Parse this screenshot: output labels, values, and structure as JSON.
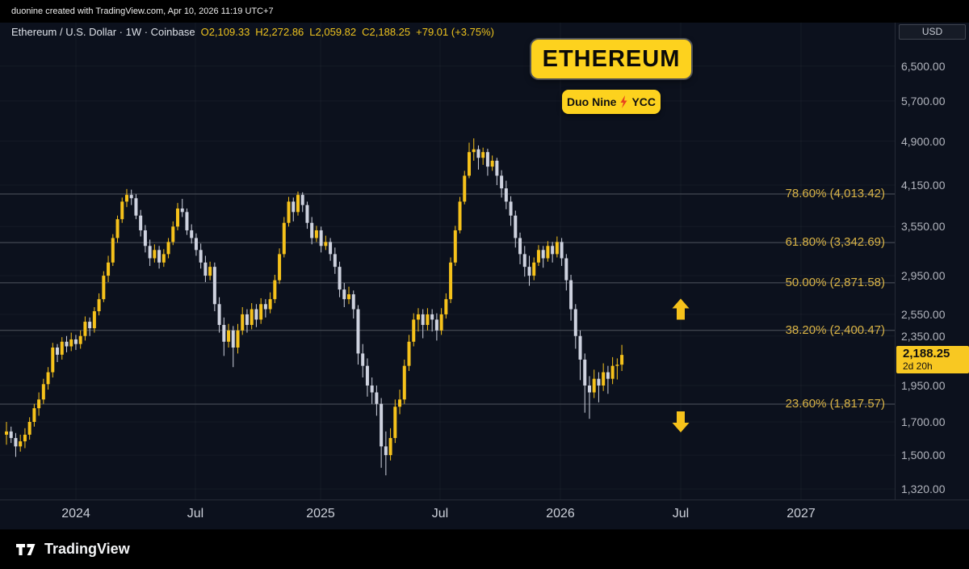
{
  "topbar": {
    "attribution": "duonine created with TradingView.com, Apr 10, 2026 11:19 UTC+7"
  },
  "legend": {
    "symbol": "Ethereum / U.S. Dollar · 1W · Coinbase",
    "ohlc": [
      "O2,109.33",
      "H2,272.86",
      "L2,059.82",
      "C2,188.25",
      "+79.01 (+3.75%)"
    ]
  },
  "badges": {
    "main": "ETHEREUM",
    "sub_left": "Duo Nine",
    "sub_right": "YCC"
  },
  "fib_levels": [
    {
      "label": "78.60% (4,013.42)",
      "value": 4013.42
    },
    {
      "label": "61.80% (3,342.69)",
      "value": 3342.69
    },
    {
      "label": "50.00% (2,871.58)",
      "value": 2871.58
    },
    {
      "label": "38.20% (2,400.47)",
      "value": 2400.47
    },
    {
      "label": "23.60% (1,817.57)",
      "value": 1817.57
    }
  ],
  "annotations": {
    "arrows": [
      {
        "dir": "up",
        "price": 2600
      },
      {
        "dir": "down",
        "price": 1700
      }
    ]
  },
  "price_axis": {
    "currency": "USD",
    "ticks": [
      {
        "label": "6,500.00",
        "value": 6500
      },
      {
        "label": "5,700.00",
        "value": 5700
      },
      {
        "label": "4,900.00",
        "value": 4900
      },
      {
        "label": "4,150.00",
        "value": 4150
      },
      {
        "label": "3,550.00",
        "value": 3550
      },
      {
        "label": "2,950.00",
        "value": 2950
      },
      {
        "label": "2,550.00",
        "value": 2550
      },
      {
        "label": "2,350.00",
        "value": 2350
      },
      {
        "label": "1,950.00",
        "value": 1950
      },
      {
        "label": "1,700.00",
        "value": 1700
      },
      {
        "label": "1,500.00",
        "value": 1500
      },
      {
        "label": "1,320.00",
        "value": 1320
      }
    ],
    "last_price": "2,188.25",
    "last_value": 2188.25,
    "countdown": "2d 20h"
  },
  "time_axis": {
    "ticks": [
      "2024",
      "Jul",
      "2025",
      "Jul",
      "2026",
      "Jul",
      "2027"
    ]
  },
  "footer": {
    "brand": "TradingView"
  },
  "colors": {
    "background": "#0c111d",
    "up": "#f6c21b",
    "down": "#ced2df",
    "accent_badge": "#fdd21e",
    "fib_text": "#d9b345",
    "fib_line": "#50555f",
    "axis_text": "#b2b5be",
    "grid": "rgba(255,255,255,0.04)"
  },
  "chart_data": {
    "type": "candlestick",
    "title": "Ethereum / U.S. Dollar",
    "timeframe": "1W",
    "exchange": "Coinbase",
    "price_scale": "logarithmic",
    "x_range": [
      "Sep 2023",
      "Apr 2026"
    ],
    "ohlc_current": {
      "open": 2109.33,
      "high": 2272.86,
      "low": 2059.82,
      "close": 2188.25,
      "change": 79.01,
      "change_pct": 3.75
    },
    "candles": [
      [
        1620,
        1700,
        1560,
        1640
      ],
      [
        1640,
        1670,
        1570,
        1600
      ],
      [
        1600,
        1630,
        1490,
        1550
      ],
      [
        1550,
        1620,
        1520,
        1580
      ],
      [
        1580,
        1660,
        1540,
        1620
      ],
      [
        1620,
        1730,
        1590,
        1700
      ],
      [
        1700,
        1820,
        1670,
        1790
      ],
      [
        1790,
        1900,
        1740,
        1850
      ],
      [
        1850,
        2000,
        1820,
        1960
      ],
      [
        1960,
        2090,
        1920,
        2050
      ],
      [
        2050,
        2290,
        2010,
        2250
      ],
      [
        2250,
        2280,
        2130,
        2190
      ],
      [
        2190,
        2340,
        2150,
        2300
      ],
      [
        2300,
        2350,
        2210,
        2260
      ],
      [
        2260,
        2380,
        2220,
        2320
      ],
      [
        2320,
        2360,
        2230,
        2280
      ],
      [
        2280,
        2400,
        2240,
        2350
      ],
      [
        2350,
        2530,
        2310,
        2480
      ],
      [
        2480,
        2520,
        2350,
        2420
      ],
      [
        2420,
        2620,
        2380,
        2580
      ],
      [
        2580,
        2760,
        2540,
        2700
      ],
      [
        2700,
        3000,
        2670,
        2950
      ],
      [
        2950,
        3180,
        2880,
        3100
      ],
      [
        3100,
        3450,
        3060,
        3400
      ],
      [
        3400,
        3700,
        3340,
        3650
      ],
      [
        3650,
        3960,
        3600,
        3900
      ],
      [
        3900,
        4090,
        3820,
        4000
      ],
      [
        4000,
        4080,
        3850,
        3950
      ],
      [
        3950,
        4010,
        3650,
        3700
      ],
      [
        3700,
        3780,
        3420,
        3500
      ],
      [
        3500,
        3570,
        3220,
        3300
      ],
      [
        3300,
        3380,
        3060,
        3150
      ],
      [
        3150,
        3320,
        3100,
        3250
      ],
      [
        3250,
        3300,
        3030,
        3100
      ],
      [
        3100,
        3260,
        3050,
        3200
      ],
      [
        3200,
        3400,
        3150,
        3350
      ],
      [
        3350,
        3620,
        3310,
        3550
      ],
      [
        3550,
        3880,
        3500,
        3800
      ],
      [
        3800,
        3940,
        3680,
        3750
      ],
      [
        3750,
        3800,
        3440,
        3500
      ],
      [
        3500,
        3580,
        3330,
        3400
      ],
      [
        3400,
        3460,
        3180,
        3250
      ],
      [
        3250,
        3330,
        3030,
        3100
      ],
      [
        3100,
        3180,
        2880,
        2950
      ],
      [
        2950,
        3110,
        2900,
        3050
      ],
      [
        3050,
        3100,
        2580,
        2650
      ],
      [
        2650,
        2720,
        2380,
        2450
      ],
      [
        2450,
        2520,
        2180,
        2300
      ],
      [
        2300,
        2460,
        2250,
        2400
      ],
      [
        2400,
        2440,
        2090,
        2250
      ],
      [
        2250,
        2460,
        2200,
        2400
      ],
      [
        2400,
        2620,
        2360,
        2550
      ],
      [
        2550,
        2600,
        2380,
        2450
      ],
      [
        2450,
        2660,
        2410,
        2600
      ],
      [
        2600,
        2650,
        2430,
        2500
      ],
      [
        2500,
        2710,
        2460,
        2650
      ],
      [
        2650,
        2700,
        2520,
        2600
      ],
      [
        2600,
        2770,
        2560,
        2700
      ],
      [
        2700,
        2960,
        2660,
        2900
      ],
      [
        2900,
        3270,
        2860,
        3200
      ],
      [
        3200,
        3680,
        3160,
        3600
      ],
      [
        3600,
        3970,
        3550,
        3900
      ],
      [
        3900,
        3960,
        3620,
        3750
      ],
      [
        3750,
        4050,
        3700,
        4000
      ],
      [
        4000,
        4040,
        3750,
        3850
      ],
      [
        3850,
        3900,
        3520,
        3600
      ],
      [
        3600,
        3680,
        3320,
        3400
      ],
      [
        3400,
        3560,
        3350,
        3500
      ],
      [
        3500,
        3550,
        3220,
        3300
      ],
      [
        3300,
        3430,
        3250,
        3350
      ],
      [
        3350,
        3400,
        3120,
        3200
      ],
      [
        3200,
        3280,
        2970,
        3050
      ],
      [
        3050,
        3110,
        2720,
        2800
      ],
      [
        2800,
        2870,
        2620,
        2700
      ],
      [
        2700,
        2830,
        2650,
        2750
      ],
      [
        2750,
        2790,
        2510,
        2600
      ],
      [
        2600,
        2640,
        2110,
        2200
      ],
      [
        2200,
        2280,
        2010,
        2100
      ],
      [
        2100,
        2160,
        1870,
        1950
      ],
      [
        1950,
        2010,
        1820,
        1900
      ],
      [
        1900,
        1950,
        1740,
        1820
      ],
      [
        1820,
        1860,
        1430,
        1550
      ],
      [
        1550,
        1640,
        1390,
        1500
      ],
      [
        1500,
        1660,
        1470,
        1600
      ],
      [
        1600,
        1850,
        1570,
        1800
      ],
      [
        1800,
        1920,
        1750,
        1850
      ],
      [
        1850,
        2150,
        1820,
        2100
      ],
      [
        2100,
        2360,
        2060,
        2300
      ],
      [
        2300,
        2560,
        2260,
        2500
      ],
      [
        2500,
        2610,
        2390,
        2550
      ],
      [
        2550,
        2600,
        2330,
        2450
      ],
      [
        2450,
        2610,
        2400,
        2550
      ],
      [
        2550,
        2600,
        2390,
        2500
      ],
      [
        2500,
        2560,
        2310,
        2400
      ],
      [
        2400,
        2610,
        2360,
        2550
      ],
      [
        2550,
        2760,
        2510,
        2700
      ],
      [
        2700,
        3160,
        2660,
        3100
      ],
      [
        3100,
        3560,
        3060,
        3500
      ],
      [
        3500,
        3970,
        3460,
        3900
      ],
      [
        3900,
        4380,
        3860,
        4300
      ],
      [
        4300,
        4870,
        4260,
        4700
      ],
      [
        4700,
        4950,
        4550,
        4750
      ],
      [
        4750,
        4820,
        4400,
        4600
      ],
      [
        4600,
        4780,
        4480,
        4700
      ],
      [
        4700,
        4760,
        4300,
        4450
      ],
      [
        4450,
        4640,
        4380,
        4550
      ],
      [
        4550,
        4600,
        4150,
        4300
      ],
      [
        4300,
        4390,
        3960,
        4100
      ],
      [
        4100,
        4220,
        3790,
        3900
      ],
      [
        3900,
        3980,
        3560,
        3700
      ],
      [
        3700,
        3770,
        3280,
        3400
      ],
      [
        3400,
        3470,
        3080,
        3200
      ],
      [
        3200,
        3300,
        2940,
        3050
      ],
      [
        3050,
        3180,
        2840,
        2950
      ],
      [
        2950,
        3160,
        2900,
        3100
      ],
      [
        3100,
        3310,
        3060,
        3250
      ],
      [
        3250,
        3300,
        3040,
        3150
      ],
      [
        3150,
        3360,
        3110,
        3300
      ],
      [
        3300,
        3350,
        3100,
        3200
      ],
      [
        3200,
        3420,
        3160,
        3350
      ],
      [
        3350,
        3400,
        3060,
        3150
      ],
      [
        3150,
        3200,
        2790,
        2900
      ],
      [
        2900,
        2960,
        2490,
        2600
      ],
      [
        2600,
        2650,
        2240,
        2350
      ],
      [
        2350,
        2400,
        1990,
        2150
      ],
      [
        2150,
        2200,
        1760,
        1950
      ],
      [
        1950,
        2020,
        1720,
        1900
      ],
      [
        1900,
        2070,
        1860,
        2000
      ],
      [
        2000,
        2050,
        1830,
        1950
      ],
      [
        1950,
        2120,
        1910,
        2050
      ],
      [
        2050,
        2100,
        1890,
        2000
      ],
      [
        2000,
        2170,
        1960,
        2100
      ],
      [
        2100,
        2160,
        1995,
        2109
      ],
      [
        2109.33,
        2272.86,
        2059.82,
        2188.25
      ]
    ]
  }
}
